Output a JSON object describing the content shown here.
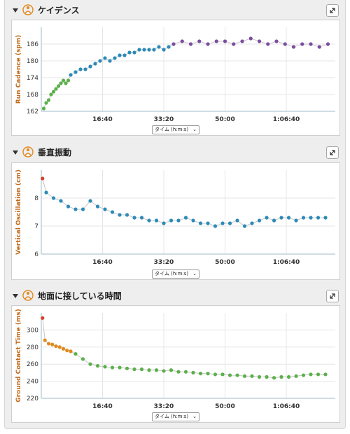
{
  "colors": {
    "blue": "#2c8bb7",
    "purple": "#7a4da0",
    "green": "#5bb04a",
    "orange": "#e08a1e",
    "red": "#d6402a",
    "axis_label": "#c16a1b",
    "grid": "#e6e6e6"
  },
  "axis_select": {
    "label": "タイム (h:m:s)",
    "arrow": "⌄"
  },
  "panels": [
    {
      "title": "ケイデンス",
      "icon": "runner-icon"
    },
    {
      "title": "垂直振動",
      "icon": "runner-icon"
    },
    {
      "title": "地面に接している時間",
      "icon": "runner-icon"
    }
  ],
  "chart_data": [
    {
      "type": "scatter",
      "ylabel": "Run Cadence (spm)",
      "xlabel": "",
      "x_ticks": [
        "16:40",
        "33:20",
        "50:00",
        "1:06:40"
      ],
      "x_tick_values": [
        1000,
        2000,
        3000,
        4000
      ],
      "xlim": [
        0,
        4800
      ],
      "y_ticks": [
        162,
        168,
        174,
        180,
        186
      ],
      "ylim": [
        162,
        192
      ],
      "series": [
        {
          "color": "green",
          "points": [
            [
              40,
              163
            ],
            [
              80,
              165
            ],
            [
              120,
              166
            ],
            [
              160,
              168
            ],
            [
              200,
              169
            ],
            [
              240,
              170
            ],
            [
              280,
              171
            ],
            [
              320,
              172
            ],
            [
              360,
              173
            ],
            [
              400,
              172
            ],
            [
              440,
              173
            ]
          ]
        },
        {
          "color": "blue",
          "points": [
            [
              480,
              175
            ],
            [
              560,
              176
            ],
            [
              640,
              177
            ],
            [
              720,
              177
            ],
            [
              800,
              178
            ],
            [
              880,
              179
            ],
            [
              960,
              180
            ],
            [
              1040,
              181
            ],
            [
              1120,
              180
            ],
            [
              1200,
              181
            ],
            [
              1280,
              182
            ],
            [
              1360,
              182
            ],
            [
              1440,
              183
            ],
            [
              1520,
              183
            ],
            [
              1600,
              184
            ],
            [
              1680,
              184
            ],
            [
              1760,
              184
            ],
            [
              1840,
              184
            ],
            [
              1920,
              185
            ],
            [
              2000,
              184
            ],
            [
              2080,
              185
            ]
          ]
        },
        {
          "color": "purple",
          "points": [
            [
              2160,
              186
            ],
            [
              2300,
              187
            ],
            [
              2440,
              186
            ],
            [
              2580,
              187
            ],
            [
              2720,
              186
            ],
            [
              2860,
              187
            ],
            [
              3000,
              187
            ],
            [
              3140,
              186
            ],
            [
              3280,
              187
            ],
            [
              3420,
              188
            ],
            [
              3560,
              187
            ],
            [
              3700,
              186
            ],
            [
              3840,
              187
            ],
            [
              3980,
              186
            ],
            [
              4120,
              185
            ],
            [
              4260,
              186
            ],
            [
              4400,
              186
            ],
            [
              4540,
              185
            ],
            [
              4680,
              186
            ]
          ]
        }
      ]
    },
    {
      "type": "scatter",
      "ylabel": "Vertical Oscillation (cm)",
      "xlabel": "",
      "x_ticks": [
        "16:40",
        "33:20",
        "50:00",
        "1:06:40"
      ],
      "x_tick_values": [
        1000,
        2000,
        3000,
        4000
      ],
      "xlim": [
        0,
        4800
      ],
      "y_ticks": [
        6,
        7,
        8
      ],
      "ylim": [
        6,
        9
      ],
      "series": [
        {
          "color": "red",
          "points": [
            [
              20,
              8.7
            ]
          ]
        },
        {
          "color": "blue",
          "points": [
            [
              80,
              8.2
            ],
            [
              200,
              8.0
            ],
            [
              320,
              7.9
            ],
            [
              440,
              7.7
            ],
            [
              560,
              7.6
            ],
            [
              680,
              7.6
            ],
            [
              800,
              7.9
            ],
            [
              920,
              7.7
            ],
            [
              1040,
              7.6
            ],
            [
              1160,
              7.5
            ],
            [
              1280,
              7.4
            ],
            [
              1400,
              7.4
            ],
            [
              1520,
              7.3
            ],
            [
              1640,
              7.3
            ],
            [
              1760,
              7.2
            ],
            [
              1880,
              7.2
            ],
            [
              2000,
              7.1
            ],
            [
              2120,
              7.2
            ],
            [
              2240,
              7.2
            ],
            [
              2360,
              7.3
            ],
            [
              2480,
              7.2
            ],
            [
              2600,
              7.1
            ],
            [
              2720,
              7.1
            ],
            [
              2840,
              7.0
            ],
            [
              2960,
              7.1
            ],
            [
              3080,
              7.1
            ],
            [
              3200,
              7.2
            ],
            [
              3320,
              7.0
            ],
            [
              3440,
              7.1
            ],
            [
              3560,
              7.2
            ],
            [
              3680,
              7.3
            ],
            [
              3800,
              7.2
            ],
            [
              3920,
              7.3
            ],
            [
              4040,
              7.3
            ],
            [
              4160,
              7.2
            ],
            [
              4280,
              7.3
            ],
            [
              4400,
              7.3
            ],
            [
              4520,
              7.3
            ],
            [
              4640,
              7.3
            ]
          ]
        }
      ]
    },
    {
      "type": "scatter",
      "ylabel": "Ground Contact Time (ms)",
      "xlabel": "",
      "x_ticks": [
        "16:40",
        "33:20",
        "50:00",
        "1:06:40"
      ],
      "x_tick_values": [
        1000,
        2000,
        3000,
        4000
      ],
      "xlim": [
        0,
        4800
      ],
      "y_ticks": [
        220,
        240,
        260,
        280,
        300
      ],
      "ylim": [
        220,
        320
      ],
      "series": [
        {
          "color": "red",
          "points": [
            [
              20,
              314
            ]
          ]
        },
        {
          "color": "orange",
          "points": [
            [
              60,
              288
            ],
            [
              120,
              284
            ],
            [
              180,
              283
            ],
            [
              240,
              281
            ],
            [
              300,
              280
            ],
            [
              360,
              278
            ],
            [
              420,
              276
            ],
            [
              480,
              275
            ]
          ]
        },
        {
          "color": "green",
          "points": [
            [
              560,
              272
            ],
            [
              680,
              266
            ],
            [
              800,
              260
            ],
            [
              920,
              258
            ],
            [
              1040,
              257
            ],
            [
              1160,
              256
            ],
            [
              1280,
              256
            ],
            [
              1400,
              255
            ],
            [
              1520,
              254
            ],
            [
              1640,
              254
            ],
            [
              1760,
              253
            ],
            [
              1880,
              253
            ],
            [
              2000,
              252
            ],
            [
              2120,
              253
            ],
            [
              2240,
              251
            ],
            [
              2360,
              251
            ],
            [
              2480,
              250
            ],
            [
              2600,
              249
            ],
            [
              2720,
              249
            ],
            [
              2840,
              248
            ],
            [
              2960,
              248
            ],
            [
              3080,
              247
            ],
            [
              3200,
              247
            ],
            [
              3320,
              246
            ],
            [
              3440,
              246
            ],
            [
              3560,
              245
            ],
            [
              3680,
              245
            ],
            [
              3800,
              244
            ],
            [
              3920,
              245
            ],
            [
              4040,
              245
            ],
            [
              4160,
              246
            ],
            [
              4280,
              247
            ],
            [
              4400,
              248
            ],
            [
              4520,
              248
            ],
            [
              4640,
              248
            ]
          ]
        }
      ]
    }
  ]
}
